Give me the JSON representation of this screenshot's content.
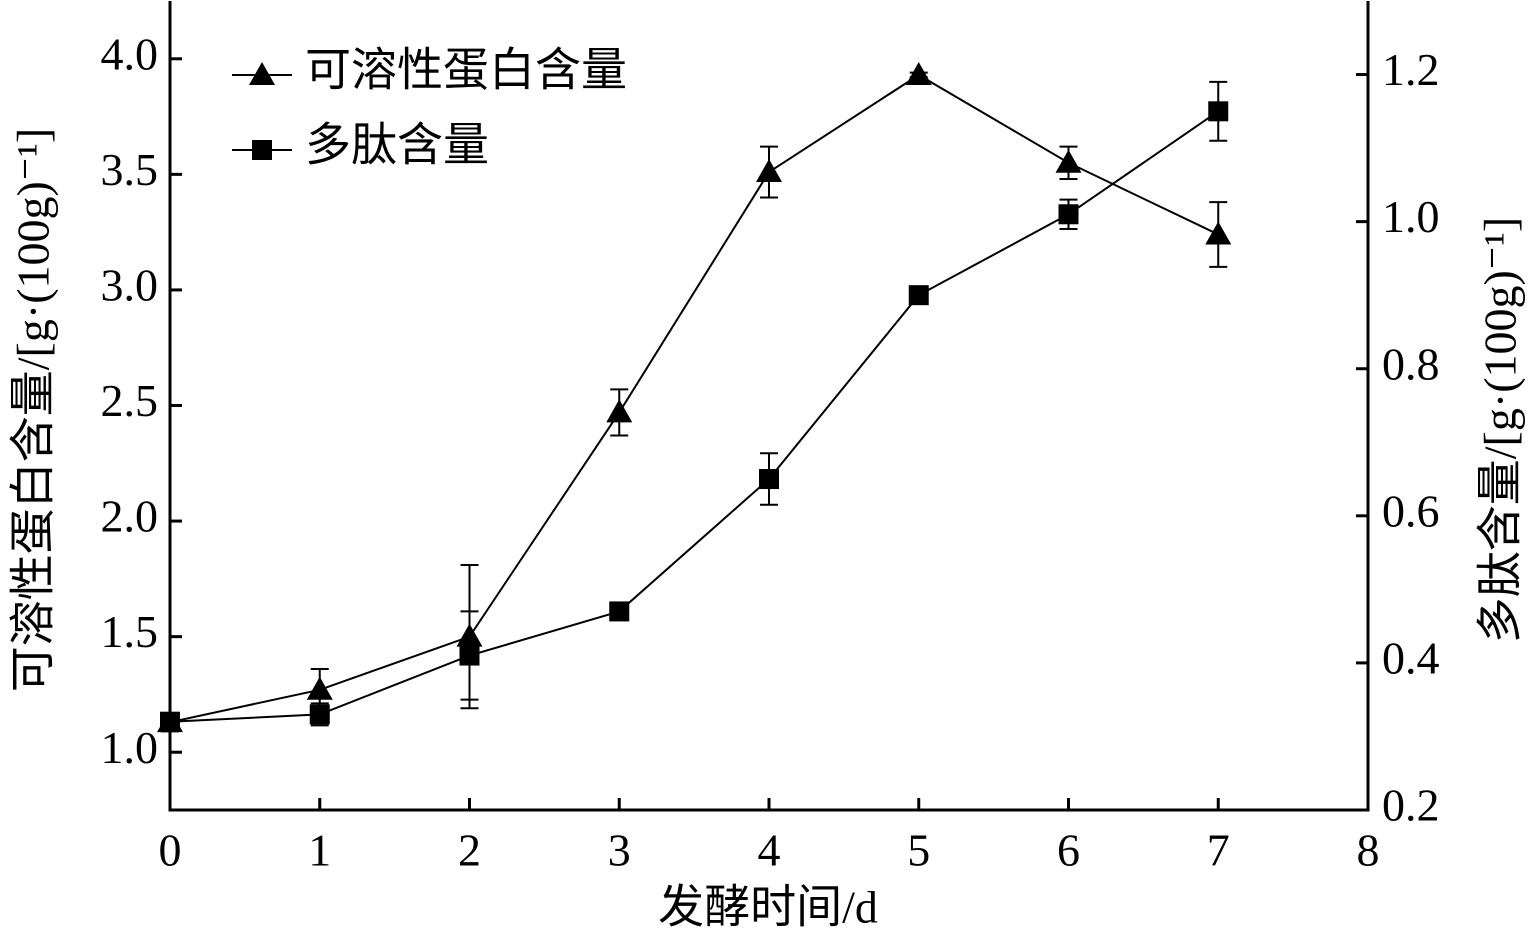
{
  "chart_data": {
    "type": "line",
    "xlabel": "发酵时间/d",
    "ylabel": "可溶性蛋白含量/[g·(100g)⁻¹]",
    "y2label": "多肽含量/[g·(100g)⁻¹]",
    "x": [
      0,
      1,
      2,
      3,
      4,
      5,
      6,
      7
    ],
    "xlim": [
      0,
      8
    ],
    "xticks": [
      0,
      1,
      2,
      3,
      4,
      5,
      6,
      7,
      8
    ],
    "ylim": [
      0.75,
      4.25
    ],
    "yticks": [
      {
        "value": 1,
        "label": "1.0"
      },
      1.5,
      {
        "value": 2,
        "label": "2.0"
      },
      2.5,
      {
        "value": 3,
        "label": "3.0"
      },
      3.5,
      {
        "value": 4,
        "label": "4.0"
      }
    ],
    "y2lim": [
      0.2,
      1.3
    ],
    "y2ticks": [
      0.2,
      0.4,
      0.6,
      0.8,
      {
        "value": 1,
        "label": "1.0"
      },
      1.2
    ],
    "legend": "upper left",
    "series": [
      {
        "name": "可溶性蛋白含量",
        "color": "#000000",
        "marker": "triangle",
        "axis": "y",
        "values": [
          1.13,
          1.27,
          1.5,
          2.47,
          3.51,
          3.93,
          3.55,
          3.24
        ],
        "errors": [
          0.04,
          0.09,
          0.31,
          0.1,
          0.11,
          0.01,
          0.07,
          0.14
        ]
      },
      {
        "name": "多肽含量",
        "color": "#000000",
        "marker": "square",
        "axis": "y2",
        "values": [
          0.32,
          0.33,
          0.41,
          0.47,
          0.65,
          0.9,
          1.01,
          1.15
        ],
        "errors": [
          0.01,
          0.015,
          0.06,
          0.01,
          0.035,
          0.01,
          0.02,
          0.04
        ]
      }
    ]
  }
}
